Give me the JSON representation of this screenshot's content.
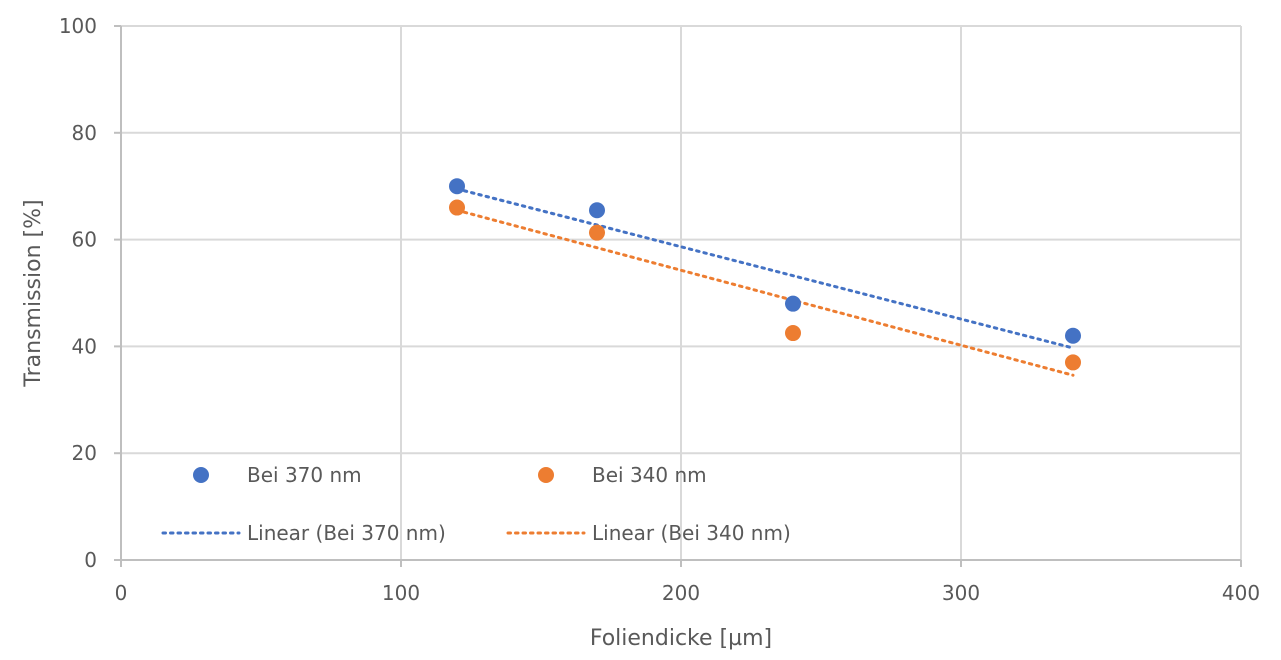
{
  "chart_data": {
    "type": "scatter",
    "title": "",
    "xlabel": "Foliendicke [µm]",
    "ylabel": "Transmission [%]",
    "xlim": [
      0,
      400
    ],
    "ylim": [
      0,
      100
    ],
    "xticks": [
      "0",
      "100",
      "200",
      "300",
      "400"
    ],
    "yticks": [
      "0",
      "20",
      "40",
      "60",
      "80",
      "100"
    ],
    "xtick_values": [
      0,
      100,
      200,
      300,
      400
    ],
    "ytick_values": [
      0,
      20,
      40,
      60,
      80,
      100
    ],
    "grid": true,
    "legend_position": "bottom-left-inside",
    "series": [
      {
        "name": "Bei 370 nm",
        "color": "#4472C4",
        "x": [
          120,
          170,
          240,
          340
        ],
        "y": [
          70,
          65.5,
          48,
          42
        ]
      },
      {
        "name": "Bei 340 nm",
        "color": "#ED7D31",
        "x": [
          120,
          170,
          240,
          340
        ],
        "y": [
          66,
          61.3,
          42.5,
          37
        ]
      }
    ],
    "trendlines": [
      {
        "name": "Linear (Bei 370 nm)",
        "color": "#4472C4",
        "type": "linear",
        "x": [
          120,
          340
        ],
        "y": [
          69.5,
          39.7
        ]
      },
      {
        "name": "Linear (Bei 340 nm)",
        "color": "#ED7D31",
        "type": "linear",
        "x": [
          120,
          340
        ],
        "y": [
          65.5,
          34.6
        ]
      }
    ]
  }
}
